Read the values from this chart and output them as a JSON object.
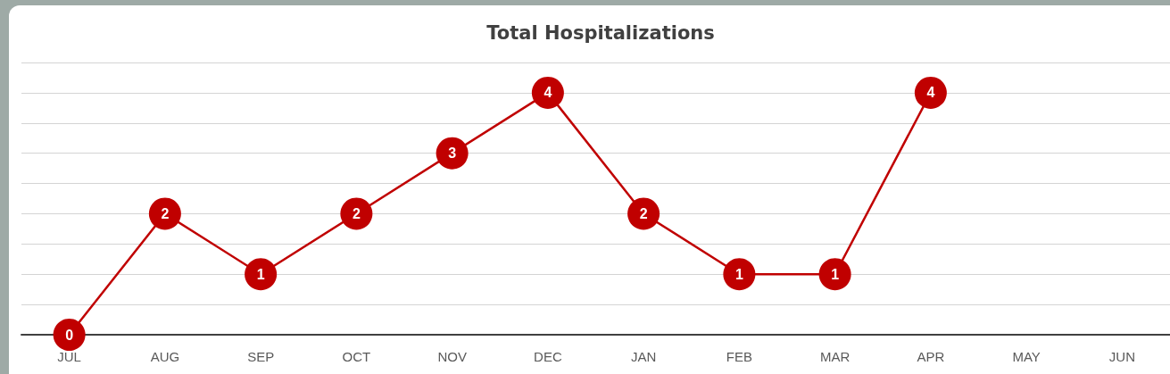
{
  "chart_data": {
    "type": "line",
    "title": "Total Hospitalizations",
    "categories": [
      "JUL",
      "AUG",
      "SEP",
      "OCT",
      "NOV",
      "DEC",
      "JAN",
      "FEB",
      "MAR",
      "APR",
      "MAY",
      "JUN"
    ],
    "values": [
      0,
      2,
      1,
      2,
      3,
      4,
      2,
      1,
      1,
      4,
      null,
      null
    ],
    "color": "#c00000",
    "ylim": [
      0,
      4.5
    ],
    "yticks": [
      {
        "value": 0,
        "label": null
      },
      {
        "value": 0.5,
        "label": null
      },
      {
        "value": 1,
        "label": null
      },
      {
        "value": 1.5,
        "label": null
      },
      {
        "value": 2,
        "label": null
      },
      {
        "value": 2.5,
        "label": null
      },
      {
        "value": 3,
        "label": null
      },
      {
        "value": 3.5,
        "label": null
      },
      {
        "value": 4,
        "label": null
      },
      {
        "value": 4.5,
        "label": null
      }
    ],
    "grid": "y",
    "tick_labels": "x",
    "data_labels": true,
    "marker": "circle",
    "line_style": "solid"
  }
}
